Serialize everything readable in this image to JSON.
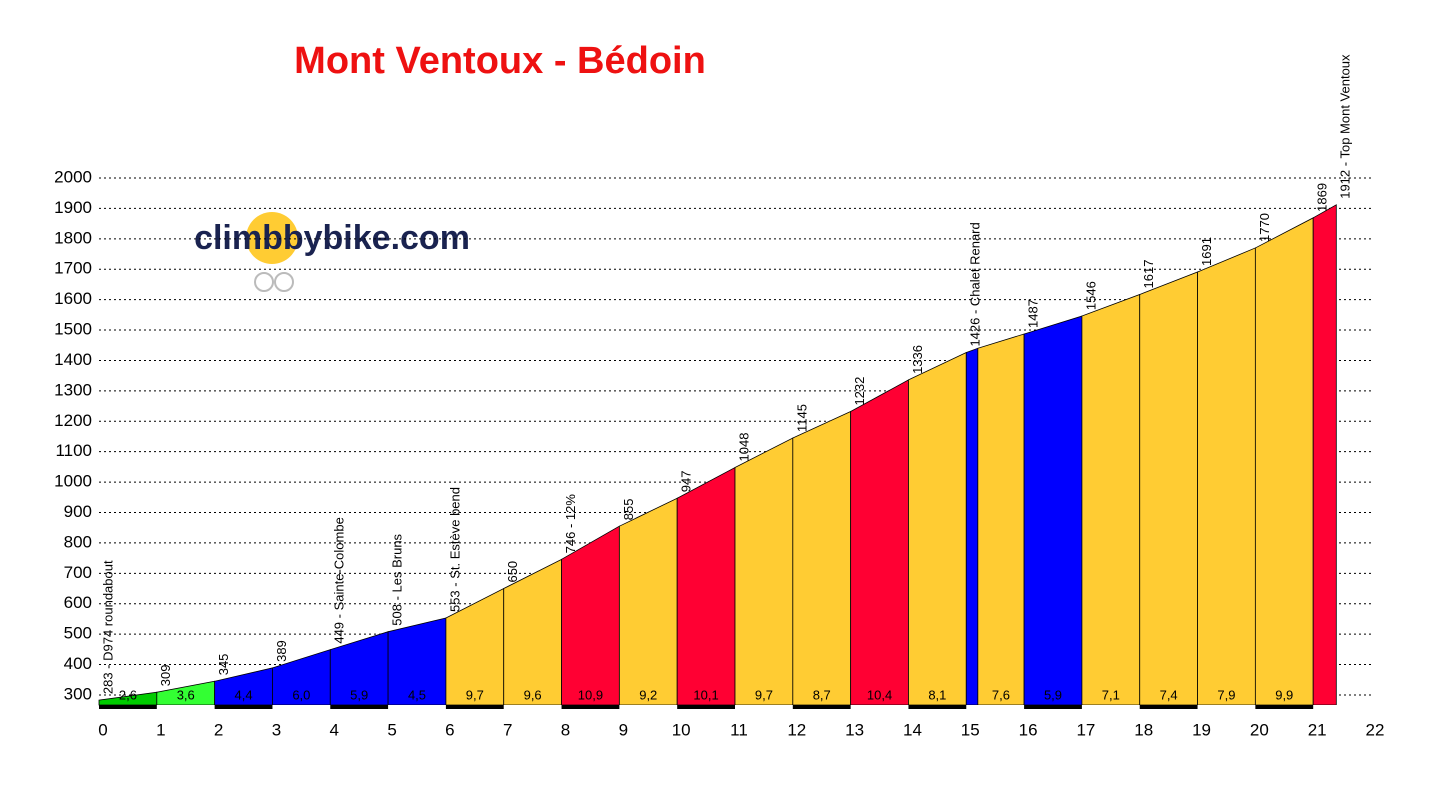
{
  "chart_data": {
    "type": "elevation-profile",
    "title": "Mont Ventoux - Bédoin",
    "logo": "climbbybike.com",
    "x": [
      0,
      1,
      2,
      3,
      4,
      5,
      6,
      7,
      8,
      9,
      10,
      11,
      12,
      13,
      14,
      15,
      15.2,
      16,
      17,
      18,
      19,
      20,
      21,
      21.4
    ],
    "values": [
      283,
      309,
      345,
      389,
      449,
      508,
      553,
      650,
      746,
      855,
      947,
      1048,
      1145,
      1232,
      1336,
      1426,
      1440,
      1487,
      1546,
      1617,
      1691,
      1770,
      1869,
      1912
    ],
    "point_labels": [
      "283 - D974 roundabout",
      "309",
      "345",
      "389",
      "449 - Sainte-Colombe",
      "508 - Les Bruns",
      "553 - St. Estève bend",
      "650",
      "746 - 12%",
      "855",
      "947",
      "1048",
      "1145",
      "1232",
      "1336",
      "1426 - Chalet Renard",
      null,
      "1487",
      "1546",
      "1617",
      "1691",
      "1770",
      "1869",
      "1912 - Top Mont Ventoux"
    ],
    "gradients": {
      "values": [
        2.6,
        3.6,
        4.4,
        6.0,
        5.9,
        4.5,
        9.7,
        9.6,
        10.9,
        9.2,
        10.1,
        9.7,
        8.7,
        10.4,
        8.1,
        null,
        7.6,
        5.9,
        7.1,
        7.4,
        7.9,
        9.9,
        null
      ],
      "value_labels": [
        "2,6",
        "3,6",
        "4,4",
        "6,0",
        "5,9",
        "4,5",
        "9,7",
        "9,6",
        "10,9",
        "9,2",
        "10,1",
        "9,7",
        "8,7",
        "10,4",
        "8,1",
        null,
        "7,6",
        "5,9",
        "7,1",
        "7,4",
        "7,9",
        "9,9",
        null
      ],
      "colors": [
        "#00cc00",
        "#33ff33",
        "#0000ff",
        "#0000ff",
        "#0000ff",
        "#0000ff",
        "#ffcc33",
        "#ffcc33",
        "#ff0033",
        "#ffcc33",
        "#ff0033",
        "#ffcc33",
        "#ffcc33",
        "#ff0033",
        "#ffcc33",
        "#0000ff",
        "#ffcc33",
        "#0000ff",
        "#ffcc33",
        "#ffcc33",
        "#ffcc33",
        "#ffcc33",
        "#ff0033"
      ]
    },
    "xlim": [
      0,
      22
    ],
    "xticks": [
      0,
      1,
      2,
      3,
      4,
      5,
      6,
      7,
      8,
      9,
      10,
      11,
      12,
      13,
      14,
      15,
      16,
      17,
      18,
      19,
      20,
      21,
      22
    ],
    "ylim": [
      267,
      2000
    ],
    "yticks": [
      300,
      400,
      500,
      600,
      700,
      800,
      900,
      1000,
      1100,
      1200,
      1300,
      1400,
      1500,
      1600,
      1700,
      1800,
      1900,
      2000
    ],
    "grid": true
  }
}
